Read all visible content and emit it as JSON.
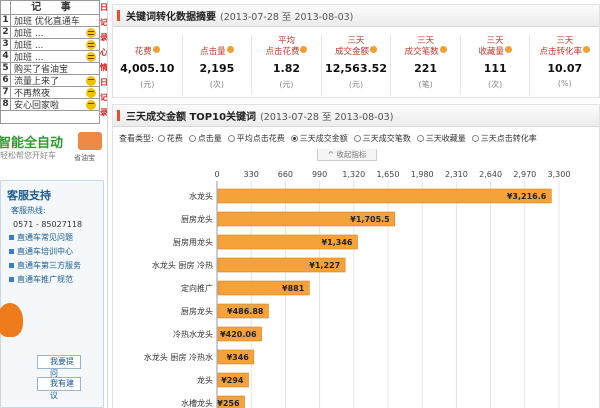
{
  "sidebar": {
    "notes_title": "记 事",
    "notes": [
      {
        "num": "1",
        "text": "加班 优化直通车",
        "face": ""
      },
      {
        "num": "2",
        "text": "加班 ...",
        "face": "smile"
      },
      {
        "num": "3",
        "text": "加班 ...",
        "face": "smile"
      },
      {
        "num": "4",
        "text": "加班 ...",
        "face": "smile"
      },
      {
        "num": "5",
        "text": "购买了省油宝",
        "face": ""
      },
      {
        "num": "6",
        "text": "流量上来了",
        "face": "happy"
      },
      {
        "num": "7",
        "text": "不再熬夜",
        "face": "happy"
      },
      {
        "num": "8",
        "text": "安心回家啦",
        "face": "happy"
      }
    ],
    "red_chars": [
      "日",
      "记",
      "录",
      "心",
      "情",
      "日",
      "记",
      "录"
    ],
    "ad_title": "智能全自动",
    "ad_sub": "轻松帮您开好车",
    "ad_logo_text": "省油宝",
    "support_title": "客服支持",
    "support_hotline_label": "客服热线:",
    "support_phone": "0571 - 85027118",
    "support_links": [
      "直通车常见问题",
      "直通车培训中心",
      "直通车第三方服务",
      "直通车推广规范"
    ],
    "btn_ask": "我要提问",
    "btn_suggest": "我有建议"
  },
  "metrics_panel": {
    "title": "关键词转化数据摘要",
    "date_range": "(2013-07-28 至 2013-08-03)",
    "metrics": [
      {
        "label": [
          "花费"
        ],
        "value": "4,005.10",
        "unit": "(元)"
      },
      {
        "label": [
          "点击量"
        ],
        "value": "2,195",
        "unit": "(次)"
      },
      {
        "label": [
          "平均",
          "点击花费"
        ],
        "value": "1.82",
        "unit": "(元)"
      },
      {
        "label": [
          "三天",
          "成交金额"
        ],
        "value": "12,563.52",
        "unit": "(元)"
      },
      {
        "label": [
          "三天",
          "成交笔数"
        ],
        "value": "221",
        "unit": "(笔)"
      },
      {
        "label": [
          "三天",
          "收藏量"
        ],
        "value": "111",
        "unit": "(次)"
      },
      {
        "label": [
          "三天",
          "点击转化率"
        ],
        "value": "10.07",
        "unit": "(%)"
      }
    ]
  },
  "top10_panel": {
    "title": "三天成交金额 TOP10关键词",
    "date_range": "(2013-07-28 至 2013-08-03)",
    "type_label": "查看类型:",
    "types": [
      "花费",
      "点击量",
      "平均点击花费",
      "三天成交金额",
      "三天成交笔数",
      "三天收藏量",
      "三天点击转化率"
    ],
    "selected_type": "三天成交金额",
    "collapse_label": "收起指标"
  },
  "chart_data": {
    "type": "bar",
    "orientation": "horizontal",
    "categories": [
      "水龙头",
      "厨房龙头",
      "厨房用龙头",
      "水龙头 厨房 冷热",
      "定向推广",
      "厨房龙头",
      "冷热水龙头",
      "水龙头 厨房 冷热水",
      "龙头",
      "水槽龙头"
    ],
    "values": [
      3216.6,
      1705.5,
      1346,
      1227,
      881,
      486.88,
      420.06,
      346,
      294,
      256
    ],
    "value_labels": [
      "¥3,216.6",
      "¥1,705.5",
      "¥1,346",
      "¥1,227",
      "¥881",
      "¥486.88",
      "¥420.06",
      "¥346",
      "¥294",
      "¥256"
    ],
    "xticks": [
      0,
      330,
      660,
      990,
      1320,
      1650,
      1980,
      2310,
      2640,
      2970,
      3300
    ],
    "xtick_labels": [
      "0",
      "330",
      "660",
      "990",
      "1,320",
      "1,650",
      "1,980",
      "2,310",
      "2,640",
      "2,970",
      "3,300"
    ],
    "xlim": [
      0,
      3300
    ],
    "grid": true,
    "bar_color": "#f6a23a"
  }
}
